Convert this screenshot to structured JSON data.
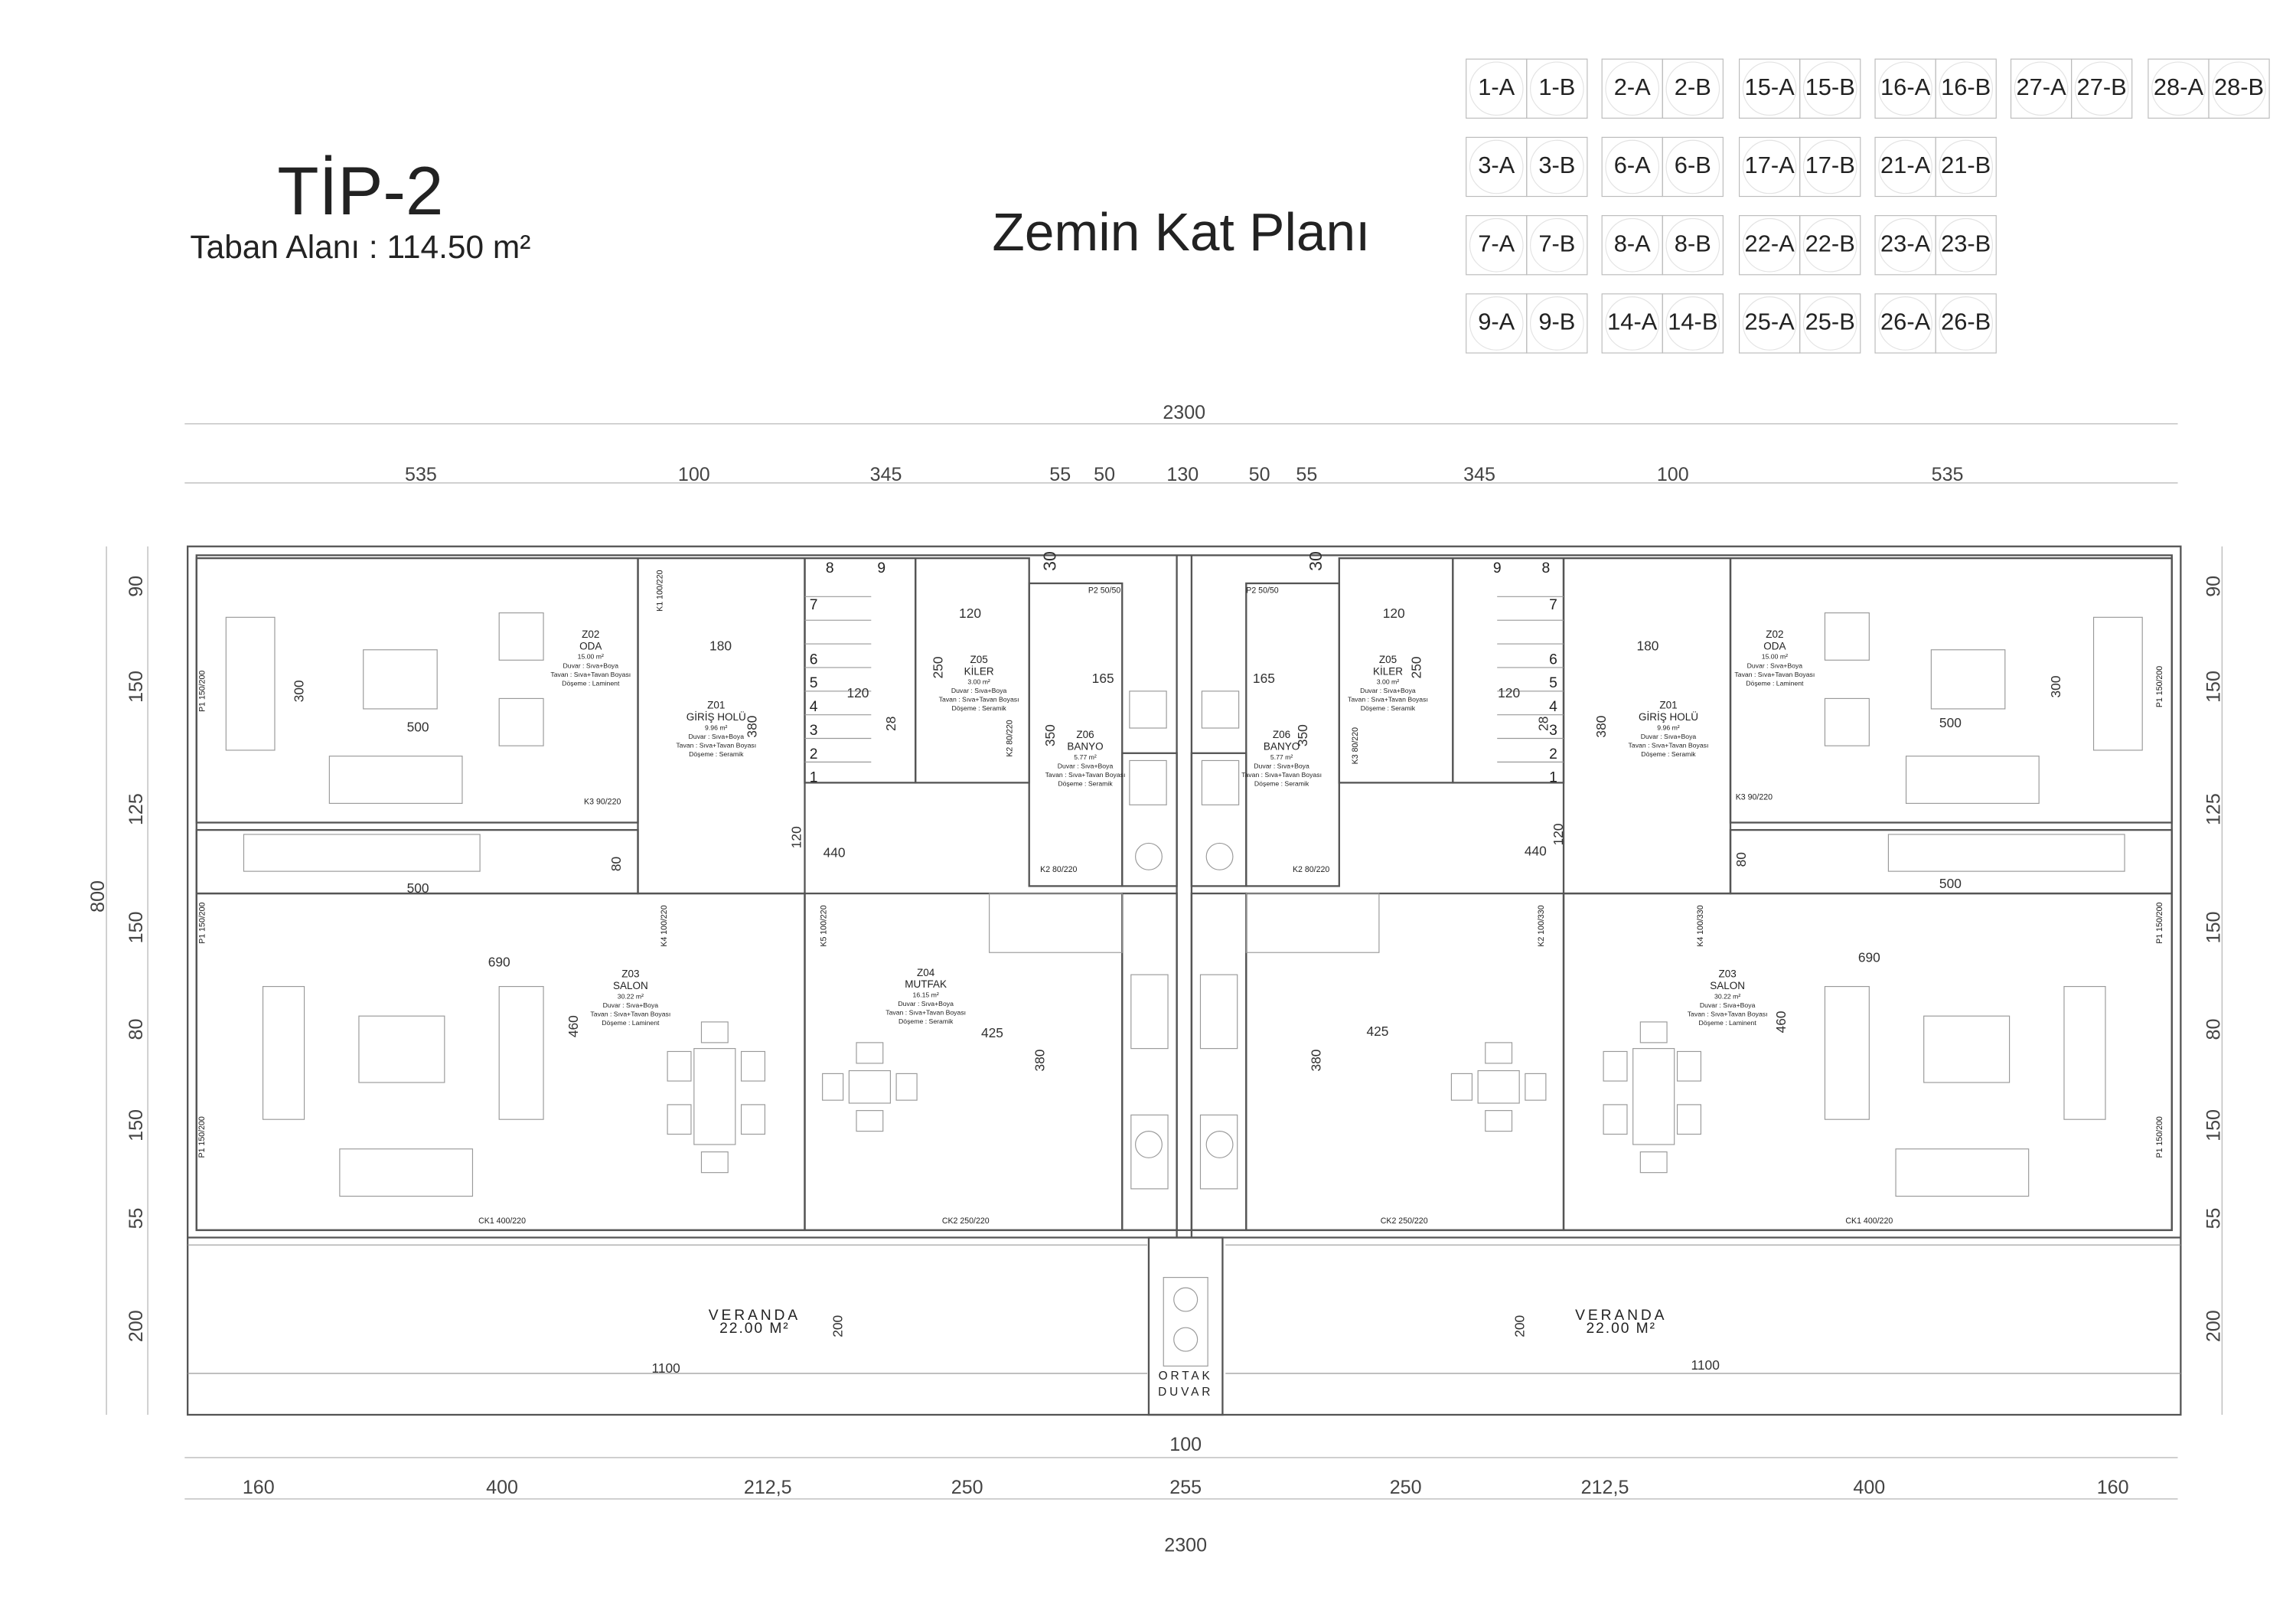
{
  "header": {
    "title": "TİP-2",
    "subtitle": "Taban Alanı : 114.50 m²",
    "plan_title": "Zemin Kat Planı"
  },
  "unit_grid": [
    [
      "1-A",
      "1-B",
      "2-A",
      "2-B",
      "15-A",
      "15-B",
      "16-A",
      "16-B",
      "27-A",
      "27-B",
      "28-A",
      "28-B"
    ],
    [
      "3-A",
      "3-B",
      "6-A",
      "6-B",
      "17-A",
      "17-B",
      "21-A",
      "21-B"
    ],
    [
      "7-A",
      "7-B",
      "8-A",
      "8-B",
      "22-A",
      "22-B",
      "23-A",
      "23-B"
    ],
    [
      "9-A",
      "9-B",
      "14-A",
      "14-B",
      "25-A",
      "25-B",
      "26-A",
      "26-B"
    ]
  ],
  "dimensions": {
    "top_total": "2300",
    "top": [
      "535",
      "100",
      "345",
      "55",
      "50",
      "130",
      "50",
      "55",
      "345",
      "100",
      "535"
    ],
    "left_total": "800",
    "left": [
      "90",
      "150",
      "125",
      "150",
      "80",
      "150",
      "55",
      "200"
    ],
    "right": [
      "90",
      "150",
      "125",
      "150",
      "80",
      "150",
      "55",
      "200"
    ],
    "bottom_center": "100",
    "bottom": [
      "160",
      "400",
      "212,5",
      "250",
      "255",
      "250",
      "212,5",
      "400",
      "160"
    ],
    "bottom_total": "2300"
  },
  "rooms": [
    {
      "code": "Z02",
      "name": "ODA",
      "area": "15.00 m²",
      "wall": "Duvar : Sıva+Boya",
      "ceiling": "Tavan : Sıva+Tavan Boyası",
      "floor": "Döşeme : Laminent"
    },
    {
      "code": "Z01",
      "name": "GİRİŞ HOLÜ",
      "area": "9.96 m²",
      "wall": "Duvar : Sıva+Boya",
      "ceiling": "Tavan : Sıva+Tavan Boyası",
      "floor": "Döşeme : Seramik"
    },
    {
      "code": "Z05",
      "name": "KİLER",
      "area": "3.00 m²",
      "wall": "Duvar : Sıva+Boya",
      "ceiling": "Tavan : Sıva+Tavan Boyası",
      "floor": "Döşeme : Seramik"
    },
    {
      "code": "Z06",
      "name": "BANYO",
      "area": "5.77 m²",
      "wall": "Duvar : Sıva+Boya",
      "ceiling": "Tavan : Sıva+Tavan Boyası",
      "floor": "Döşeme : Seramik"
    },
    {
      "code": "Z03",
      "name": "SALON",
      "area": "30.22 m²",
      "wall": "Duvar : Sıva+Boya",
      "ceiling": "Tavan : Sıva+Tavan Boyası",
      "floor": "Döşeme : Laminent"
    },
    {
      "code": "Z04",
      "name": "MUTFAK",
      "area": "16.15 m²",
      "wall": "Duvar : Sıva+Boya",
      "ceiling": "Tavan : Sıva+Tavan Boyası",
      "floor": "Döşeme : Seramik"
    },
    {
      "code": "Z06",
      "name": "BANYO",
      "area": "5.77 m²",
      "wall": "Duvar : Sıva+Boya",
      "ceiling": "Tavan : Sıva+Tavan Boyası",
      "floor": "Döşeme : Seramik"
    },
    {
      "code": "Z05",
      "name": "KİLER",
      "area": "3.00 m²",
      "wall": "Duvar : Sıva+Boya",
      "ceiling": "Tavan : Sıva+Tavan Boyası",
      "floor": "Döşeme : Seramik"
    },
    {
      "code": "Z01",
      "name": "GİRİŞ HOLÜ",
      "area": "9.96 m²",
      "wall": "Duvar : Sıva+Boya",
      "ceiling": "Tavan : Sıva+Tavan Boyası",
      "floor": "Döşeme : Seramik"
    },
    {
      "code": "Z02",
      "name": "ODA",
      "area": "15.00 m²",
      "wall": "Duvar : Sıva+Boya",
      "ceiling": "Tavan : Sıva+Tavan Boyası",
      "floor": "Döşeme : Laminent"
    },
    {
      "code": "Z03",
      "name": "SALON",
      "area": "30.22 m²",
      "wall": "Duvar : Sıva+Boya",
      "ceiling": "Tavan : Sıva+Tavan Boyası",
      "floor": "Döşeme : Laminent"
    }
  ],
  "verandas": [
    {
      "name": "VERANDA",
      "area": "22.00 M²"
    },
    {
      "name": "VERANDA",
      "area": "22.00 M²"
    }
  ],
  "interior_dims": [
    "300",
    "500",
    "180",
    "380",
    "120",
    "28",
    "120",
    "250",
    "165",
    "350",
    "440",
    "120",
    "80",
    "500",
    "690",
    "460",
    "425",
    "380",
    "200",
    "1100",
    "30",
    "30",
    "120",
    "250",
    "120",
    "28",
    "165",
    "350",
    "180",
    "380",
    "300",
    "500",
    "440",
    "120",
    "80",
    "500",
    "690",
    "460",
    "425",
    "380",
    "200",
    "1100"
  ],
  "openings": [
    "K1 100/220",
    "K3 90/220",
    "K4 100/220",
    "K5 100/220",
    "K2 80/220",
    "K2 80/220",
    "P2 50/50",
    "P1 150/200",
    "P1 150/200",
    "P1 150/200",
    "CK1 400/220",
    "CK2 250/220",
    "P2 50/50",
    "K2 80/220",
    "K3 80/220",
    "K2 100/330",
    "K4 100/330",
    "K3 90/220",
    "CK2 250/220",
    "CK1 400/220",
    "P1 150/200",
    "P1 150/200",
    "P1 150/200"
  ],
  "stairs": [
    "1",
    "2",
    "3",
    "4",
    "5",
    "6",
    "7",
    "8",
    "9"
  ],
  "shared_wall": [
    "ORTAK",
    "DUVAR"
  ]
}
